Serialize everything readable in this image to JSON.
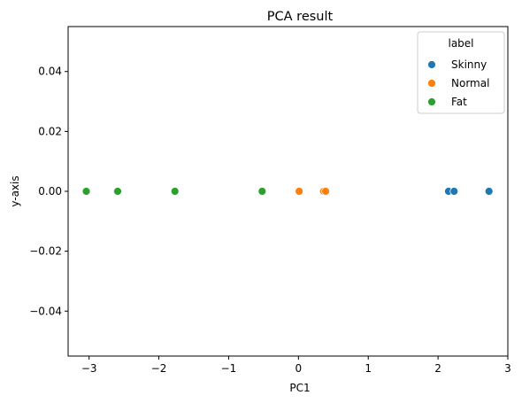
{
  "chart_data": {
    "type": "scatter",
    "title": "PCA result",
    "xlabel": "PC1",
    "ylabel": "y-axis",
    "xlim": [
      -3.3,
      3.0
    ],
    "ylim": [
      -0.055,
      0.055
    ],
    "xticks": [
      -3,
      -2,
      -1,
      0,
      1,
      2,
      3
    ],
    "xtick_labels": [
      "−3",
      "−2",
      "−1",
      "0",
      "1",
      "2",
      "3"
    ],
    "yticks": [
      -0.04,
      -0.02,
      0.0,
      0.02,
      0.04
    ],
    "ytick_labels": [
      "−0.04",
      "−0.02",
      "0.00",
      "0.02",
      "0.04"
    ],
    "grid": false,
    "legend": {
      "title": "label",
      "placement": "top-right"
    },
    "series": [
      {
        "name": "Skinny",
        "color": "#1f77b4",
        "points": [
          {
            "x": 2.15,
            "y": 0.0
          },
          {
            "x": 2.23,
            "y": 0.0
          },
          {
            "x": 2.73,
            "y": 0.0
          }
        ]
      },
      {
        "name": "Normal",
        "color": "#ff7f0e",
        "points": [
          {
            "x": 0.01,
            "y": 0.0
          },
          {
            "x": 0.36,
            "y": 0.0
          },
          {
            "x": 0.39,
            "y": 0.0
          }
        ]
      },
      {
        "name": "Fat",
        "color": "#2ca02c",
        "points": [
          {
            "x": -3.04,
            "y": 0.0
          },
          {
            "x": -2.6,
            "y": 0.0
          },
          {
            "x": -2.59,
            "y": 0.0
          },
          {
            "x": -1.77,
            "y": 0.0
          },
          {
            "x": -0.52,
            "y": 0.0
          }
        ]
      }
    ]
  }
}
